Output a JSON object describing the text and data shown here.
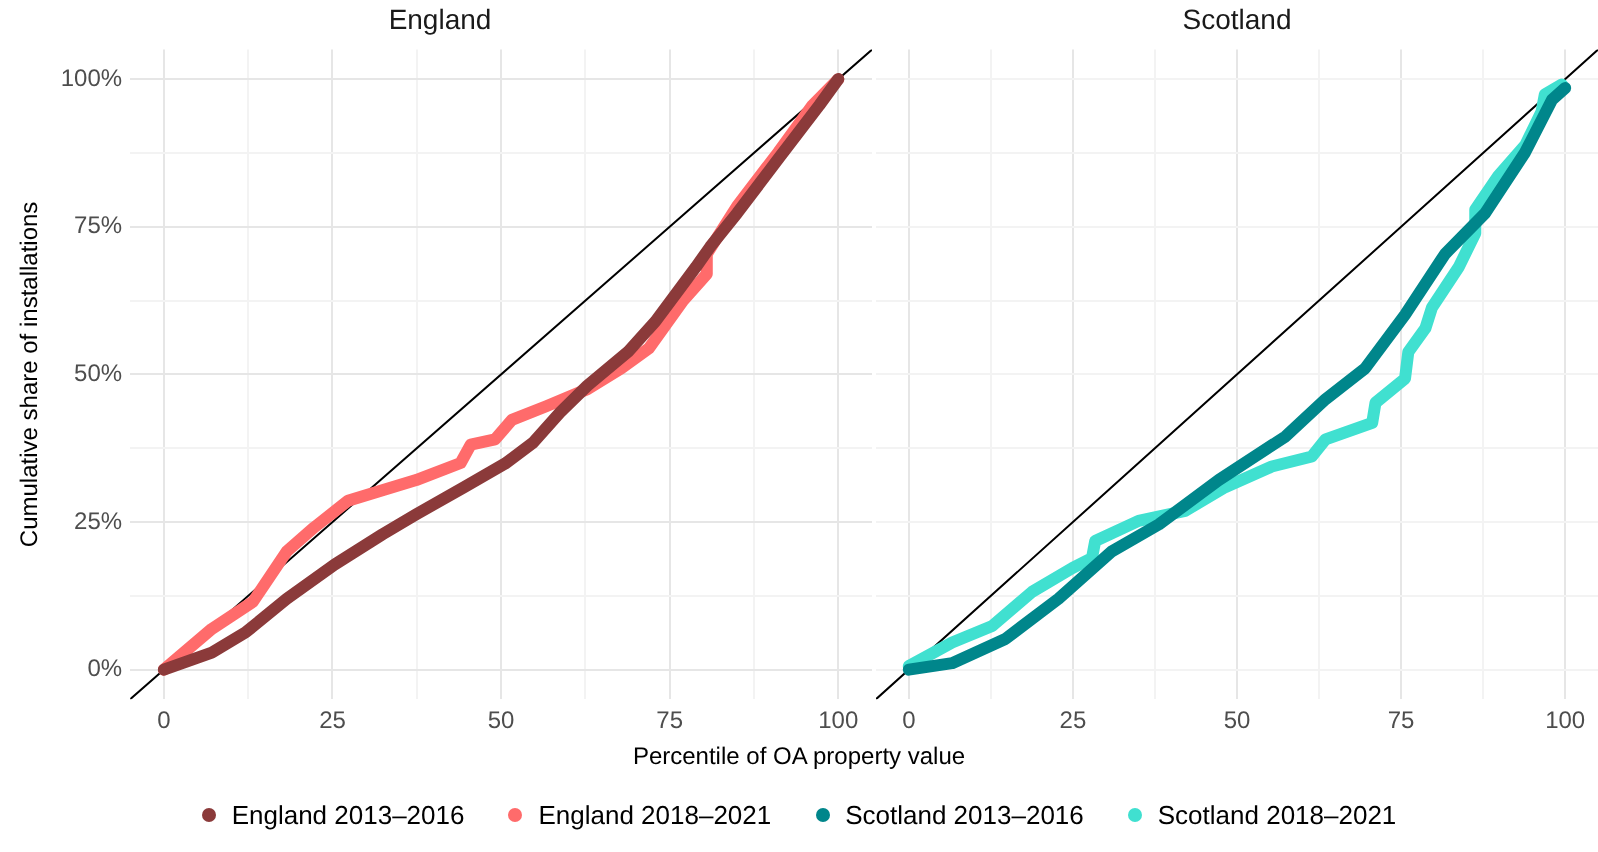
{
  "chart_data": [
    {
      "type": "line",
      "title": "England",
      "ylabel": "Cumulative share of installations",
      "xlabel": "Percentile of OA property value",
      "xlim": [
        -5,
        105
      ],
      "ylim": [
        -5,
        105
      ],
      "xticks": [
        0,
        {
          "value": 12.5,
          "label": null
        },
        25,
        {
          "value": 37.5,
          "label": null
        },
        50,
        {
          "value": 62.5,
          "label": null
        },
        75,
        {
          "value": 87.5,
          "label": null
        },
        100
      ],
      "yticks": [
        {
          "value": 0,
          "label": "0%"
        },
        {
          "value": 12.5,
          "label": null
        },
        {
          "value": 25,
          "label": "25%"
        },
        {
          "value": 37.5,
          "label": null
        },
        {
          "value": 50,
          "label": "50%"
        },
        {
          "value": 62.5,
          "label": null
        },
        {
          "value": 75,
          "label": "75%"
        },
        {
          "value": 87.5,
          "label": null
        },
        {
          "value": 100,
          "label": "100%"
        }
      ],
      "grid": true,
      "legend": "bottom",
      "marker": "none",
      "line_style": "solid",
      "series": [
        {
          "name": "England 2013–2016",
          "color": "#8b3a3a",
          "x": [
            0,
            7.1,
            12.1,
            18.2,
            25.3,
            32.4,
            37.4,
            44.5,
            50.6,
            54.7,
            58.7,
            62.8,
            68.8,
            72.9,
            78.9,
            81,
            85,
            91.1,
            97.2,
            100
          ],
          "values": [
            0,
            2.9,
            6.3,
            12,
            17.8,
            22.9,
            26.3,
            30.9,
            34.9,
            38.4,
            43.5,
            48.1,
            53.8,
            59,
            68.2,
            71.6,
            77.3,
            86.5,
            95.6,
            100
          ]
        },
        {
          "name": "England 2018–2021",
          "color": "#ff6b6b",
          "x": [
            0,
            7.1,
            13.2,
            18.2,
            22.3,
            27.3,
            32.4,
            37.4,
            44,
            45.5,
            49.1,
            51.6,
            56.7,
            62.8,
            67.8,
            71.9,
            77,
            80.5,
            80.5,
            85,
            91.1,
            96.2,
            100
          ],
          "values": [
            0,
            6.9,
            11.5,
            20,
            24.1,
            28.6,
            30.4,
            32.1,
            35,
            38.1,
            39,
            42.3,
            44.6,
            47.5,
            51,
            54.4,
            62.5,
            67,
            70.4,
            78.5,
            87.6,
            95.6,
            100
          ]
        },
        {
          "color": "#000000",
          "x": [
            -5,
            105
          ],
          "values": [
            -5,
            105
          ]
        }
      ]
    },
    {
      "type": "line",
      "title": "Scotland",
      "xlim": [
        -5,
        105
      ],
      "ylim": [
        -5,
        105
      ],
      "tick_labels": "x",
      "xticks": [
        0,
        {
          "value": 12.5,
          "label": null
        },
        25,
        {
          "value": 37.5,
          "label": null
        },
        50,
        {
          "value": 62.5,
          "label": null
        },
        75,
        {
          "value": 87.5,
          "label": null
        },
        100
      ],
      "yticks": [
        {
          "value": 0,
          "label": null
        },
        {
          "value": 12.5,
          "label": null
        },
        {
          "value": 25,
          "label": null
        },
        {
          "value": 37.5,
          "label": null
        },
        {
          "value": 50,
          "label": null
        },
        {
          "value": 62.5,
          "label": null
        },
        {
          "value": 75,
          "label": null
        },
        {
          "value": 87.5,
          "label": null
        },
        {
          "value": 100,
          "label": null
        }
      ],
      "grid": true,
      "legend": "bottom",
      "marker": "none",
      "line_style": "solid",
      "series": [
        {
          "name": "Scotland 2013–2016",
          "color": "#00868b",
          "x": [
            0,
            6.6,
            14.7,
            22.8,
            30.9,
            38.1,
            47.2,
            57.4,
            63.5,
            69.5,
            75.6,
            81.7,
            87.8,
            93.9,
            98,
            100
          ],
          "values": [
            0,
            1.1,
            5.2,
            12,
            20,
            24.6,
            32.1,
            39.5,
            45.8,
            51,
            60.1,
            70.4,
            77.3,
            87.6,
            96.5,
            98.5
          ]
        },
        {
          "name": "Scotland 2018–2021",
          "color": "#40e0d0",
          "x": [
            0,
            6.6,
            12.7,
            18.8,
            24.9,
            27.9,
            28.4,
            35,
            42.1,
            48.2,
            55.3,
            61.4,
            63.5,
            70.6,
            71.1,
            75.6,
            76.1,
            78.7,
            79.7,
            83.8,
            86.3,
            86.3,
            89.8,
            93.9,
            96.4,
            96.9,
            99.5
          ],
          "values": [
            0.6,
            4.6,
            7.4,
            13.2,
            17.2,
            18.9,
            21.8,
            25.2,
            26.9,
            30.9,
            34.4,
            36.1,
            39,
            41.8,
            45.2,
            49.3,
            53.8,
            57.8,
            61.3,
            68.2,
            73.9,
            77.9,
            83.6,
            88.8,
            94.5,
            97.4,
            99.1
          ]
        },
        {
          "color": "#000000",
          "x": [
            -5,
            105
          ],
          "values": [
            -5,
            105
          ]
        }
      ]
    }
  ]
}
